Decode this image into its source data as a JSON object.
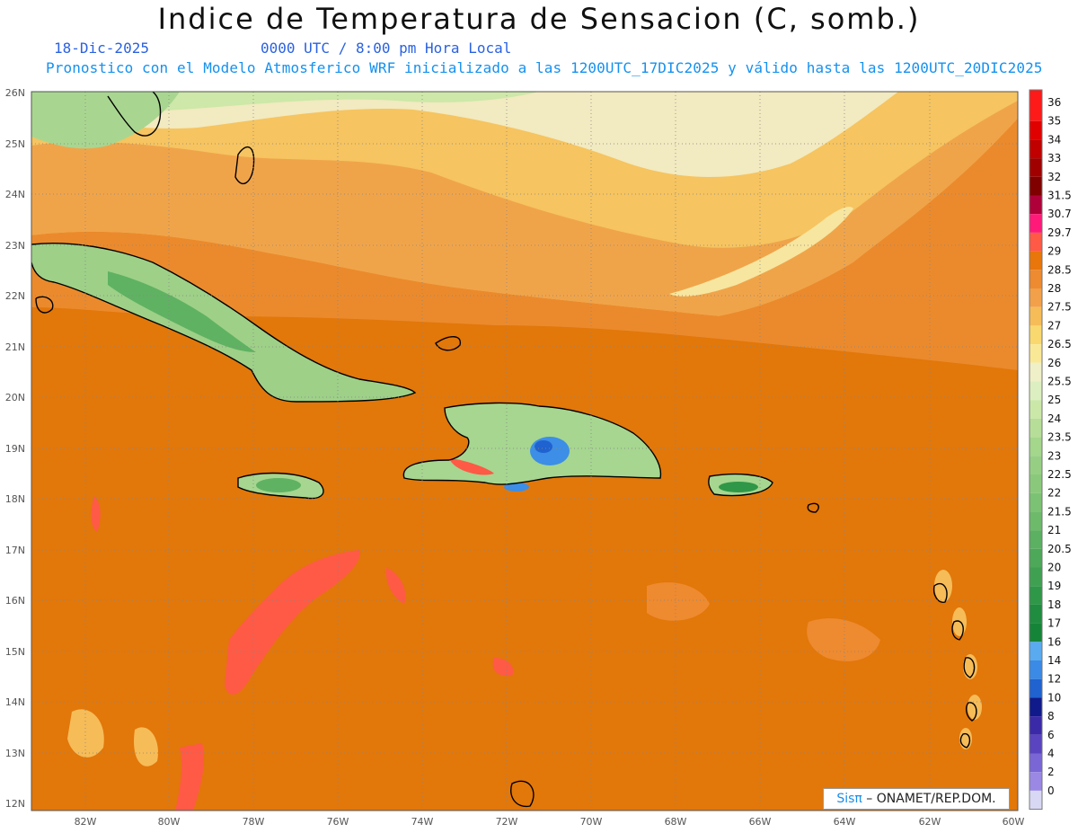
{
  "header": {
    "title": "Indice de Temperatura de Sensacion (C, somb.)",
    "date": "18-Dic-2025",
    "time": "0000 UTC / 8:00 pm Hora Local",
    "model_line": "Pronostico con el Modelo Atmosferico WRF inicializado a las 1200UTC_17DIC2025 y válido hasta las  1200UTC_20DIC2025"
  },
  "map": {
    "lat_labels": [
      "26N",
      "25N",
      "24N",
      "23N",
      "22N",
      "21N",
      "20N",
      "19N",
      "18N",
      "17N",
      "16N",
      "15N",
      "14N",
      "13N",
      "12N"
    ],
    "lon_labels": [
      "82W",
      "80W",
      "78W",
      "76W",
      "74W",
      "72W",
      "70W",
      "68W",
      "66W",
      "64W",
      "62W",
      "60W"
    ]
  },
  "colorbar": {
    "labels": [
      "36",
      "35",
      "34",
      "33",
      "32",
      "31.5",
      "30.7",
      "29.7",
      "29",
      "28.5",
      "28",
      "27.5",
      "27",
      "26.5",
      "26",
      "25.5",
      "25",
      "24",
      "23.5",
      "23",
      "22.5",
      "22",
      "21.5",
      "21",
      "20.5",
      "20",
      "19",
      "18",
      "17",
      "16",
      "14",
      "12",
      "10",
      "8",
      "6",
      "4",
      "2",
      "0"
    ],
    "colors": [
      "#ff1a1a",
      "#e00000",
      "#c00000",
      "#a00000",
      "#800000",
      "#b0003a",
      "#ff1a7a",
      "#ff5a46",
      "#e8760a",
      "#ee8a30",
      "#f2a04a",
      "#f6bc58",
      "#f9d870",
      "#f9e896",
      "#f0f0c8",
      "#dcefc0",
      "#cbe8a8",
      "#b6de98",
      "#a4d68c",
      "#96cf84",
      "#8ac97c",
      "#7cc274",
      "#6dba6a",
      "#5cb062",
      "#4ea85a",
      "#40a052",
      "#2f9748",
      "#1f8c40",
      "#168438",
      "#5aaaf0",
      "#3a8ae6",
      "#1f62d0",
      "#101a8a",
      "#3a2aa8",
      "#5a44c0",
      "#7a66d4",
      "#9a88e4",
      "#d8d8f4"
    ],
    "top_color": "#ff1a1a"
  },
  "credit": {
    "brand": "Sisπ",
    "org": " – ONAMET/REP.DOM."
  }
}
